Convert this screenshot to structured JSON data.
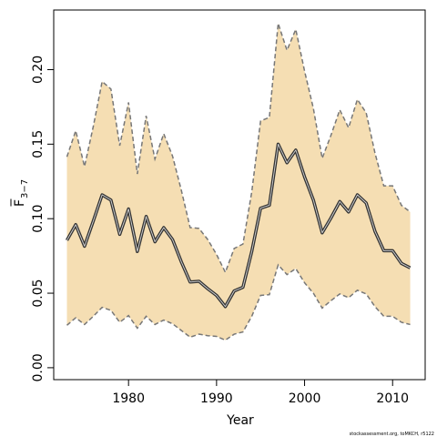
{
  "chart_data": {
    "type": "line",
    "xlabel": "Year",
    "ylabel_base": "F",
    "ylabel_subscript": "3−7",
    "footnote": "stockassessment.org, toMKCH, r5122",
    "xlim": [
      1971.5,
      2013.7
    ],
    "ylim": [
      -0.008,
      0.24
    ],
    "x_ticks": [
      1980,
      1990,
      2000,
      2010
    ],
    "x_tick_labels": [
      "1980",
      "1990",
      "2000",
      "2010"
    ],
    "y_ticks": [
      0.0,
      0.05,
      0.1,
      0.15,
      0.2
    ],
    "y_tick_labels": [
      "0.00",
      "0.05",
      "0.10",
      "0.15",
      "0.20"
    ],
    "grid": false,
    "band_color": "#f5deb3",
    "line_color": "#333333",
    "bound_color": "#777777",
    "x": [
      1973,
      1974,
      1975,
      1976,
      1977,
      1978,
      1979,
      1980,
      1981,
      1982,
      1983,
      1984,
      1985,
      1986,
      1987,
      1988,
      1989,
      1990,
      1991,
      1992,
      1993,
      1994,
      1995,
      1996,
      1997,
      1998,
      1999,
      2000,
      2001,
      2002,
      2003,
      2004,
      2005,
      2006,
      2007,
      2008,
      2009,
      2010,
      2011,
      2012
    ],
    "series": [
      {
        "role": "estimate",
        "values": [
          0.0855,
          0.096,
          0.0815,
          0.0985,
          0.116,
          0.1125,
          0.0895,
          0.1065,
          0.078,
          0.1015,
          0.0845,
          0.094,
          0.086,
          0.071,
          0.0575,
          0.058,
          0.053,
          0.0485,
          0.041,
          0.0515,
          0.054,
          0.078,
          0.107,
          0.109,
          0.15,
          0.1375,
          0.146,
          0.128,
          0.1125,
          0.0905,
          0.1005,
          0.1115,
          0.1045,
          0.116,
          0.1105,
          0.0915,
          0.0785,
          0.0785,
          0.07,
          0.067
        ]
      },
      {
        "role": "upper",
        "values": [
          0.1415,
          0.159,
          0.135,
          0.162,
          0.192,
          0.187,
          0.149,
          0.178,
          0.13,
          0.169,
          0.14,
          0.157,
          0.142,
          0.119,
          0.094,
          0.0935,
          0.086,
          0.076,
          0.064,
          0.08,
          0.083,
          0.118,
          0.1655,
          0.168,
          0.231,
          0.213,
          0.227,
          0.199,
          0.174,
          0.1405,
          0.156,
          0.173,
          0.161,
          0.18,
          0.171,
          0.144,
          0.122,
          0.122,
          0.109,
          0.1045
        ]
      },
      {
        "role": "lower",
        "values": [
          0.0285,
          0.0335,
          0.029,
          0.0345,
          0.0405,
          0.0385,
          0.0305,
          0.035,
          0.0265,
          0.0345,
          0.029,
          0.032,
          0.0295,
          0.025,
          0.0205,
          0.0225,
          0.0215,
          0.021,
          0.0185,
          0.0225,
          0.024,
          0.0345,
          0.0485,
          0.049,
          0.069,
          0.0625,
          0.0665,
          0.057,
          0.05,
          0.04,
          0.045,
          0.0495,
          0.047,
          0.052,
          0.0495,
          0.041,
          0.0345,
          0.0345,
          0.0305,
          0.029
        ]
      }
    ]
  }
}
